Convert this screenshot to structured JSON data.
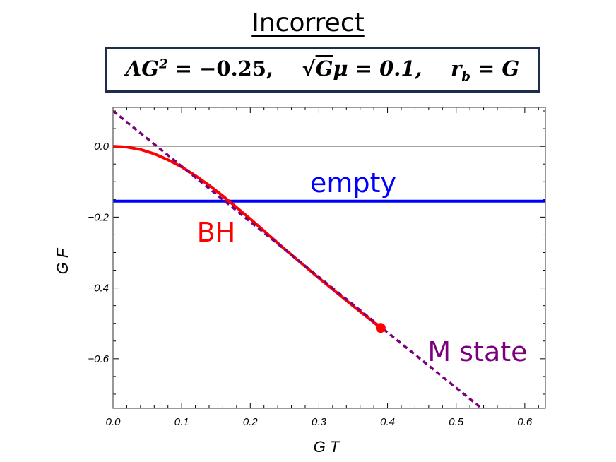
{
  "title": "Incorrect",
  "formula": "ΛG² = −0.25,   √Gμ = 0.1,   r_b = G",
  "formula_parts": {
    "lambda_term": "ΛG",
    "lambda_exp": "2",
    "lambda_rhs": " = −0.25,",
    "sqrt_sign": "√",
    "sqrt_arg": "G",
    "mu_term": "μ = 0.1,",
    "r_term": "r",
    "r_sub": "b",
    "r_rhs": " = G"
  },
  "chart_data": {
    "type": "line",
    "xlabel": "G T",
    "ylabel": "G F",
    "xlim": [
      0.0,
      0.63
    ],
    "ylim": [
      -0.74,
      0.11
    ],
    "xticks": [
      0.0,
      0.1,
      0.2,
      0.3,
      0.4,
      0.5,
      0.6
    ],
    "xtick_labels": [
      "0.0",
      "0.1",
      "0.2",
      "0.3",
      "0.4",
      "0.5",
      "0.6"
    ],
    "yticks": [
      0.0,
      -0.2,
      -0.4,
      -0.6
    ],
    "ytick_labels": [
      "0.0",
      "−0.2",
      "−0.4",
      "−0.6"
    ],
    "grid": false,
    "series": [
      {
        "name": "empty",
        "color": "#0000ff",
        "style": "solid",
        "x": [
          0.0,
          0.63
        ],
        "y": [
          -0.155,
          -0.155
        ]
      },
      {
        "name": "BH",
        "color": "#ff0000",
        "style": "solid",
        "x": [
          0.0,
          0.02,
          0.04,
          0.06,
          0.08,
          0.1,
          0.12,
          0.14,
          0.16,
          0.2,
          0.25,
          0.3,
          0.35,
          0.39
        ],
        "y": [
          0.0,
          -0.002,
          -0.009,
          -0.021,
          -0.038,
          -0.058,
          -0.083,
          -0.11,
          -0.14,
          -0.205,
          -0.29,
          -0.372,
          -0.451,
          -0.513
        ]
      },
      {
        "name": "M state",
        "color": "#7b007b",
        "style": "dashed",
        "x": [
          0.0,
          0.537
        ],
        "y": [
          0.1,
          -0.74
        ]
      }
    ],
    "endpoint": {
      "x": 0.39,
      "y": -0.513,
      "color": "#ff0000"
    },
    "zero_line": {
      "y": 0.0,
      "color": "#888888"
    },
    "annotations": [
      {
        "text": "empty",
        "color": "#0000ff"
      },
      {
        "text": "BH",
        "color": "#ff0000"
      },
      {
        "text": "M state",
        "color": "#7b007b"
      }
    ]
  }
}
